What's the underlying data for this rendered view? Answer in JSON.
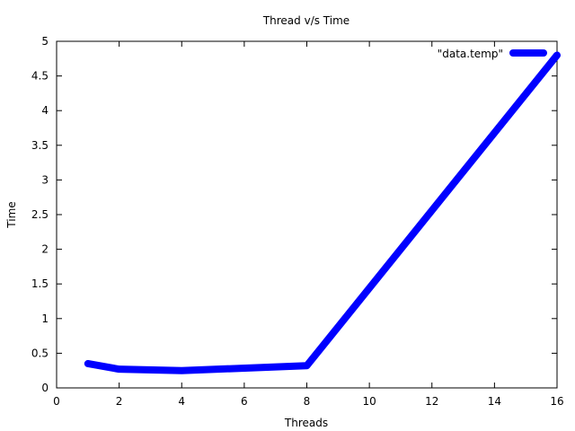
{
  "chart_data": {
    "type": "line",
    "title": "Thread v/s Time",
    "xlabel": "Threads",
    "ylabel": "Time",
    "xlim": [
      0,
      16
    ],
    "ylim": [
      0,
      5
    ],
    "xticks": [
      0,
      2,
      4,
      6,
      8,
      10,
      12,
      14,
      16
    ],
    "yticks": [
      0,
      0.5,
      1,
      1.5,
      2,
      2.5,
      3,
      3.5,
      4,
      4.5,
      5
    ],
    "grid": false,
    "legend_position": "top-right",
    "series": [
      {
        "name": "\"data.temp\"",
        "color": "#0000ff",
        "x": [
          1,
          2,
          4,
          8,
          16
        ],
        "y": [
          0.35,
          0.27,
          0.25,
          0.32,
          4.8
        ]
      }
    ]
  }
}
